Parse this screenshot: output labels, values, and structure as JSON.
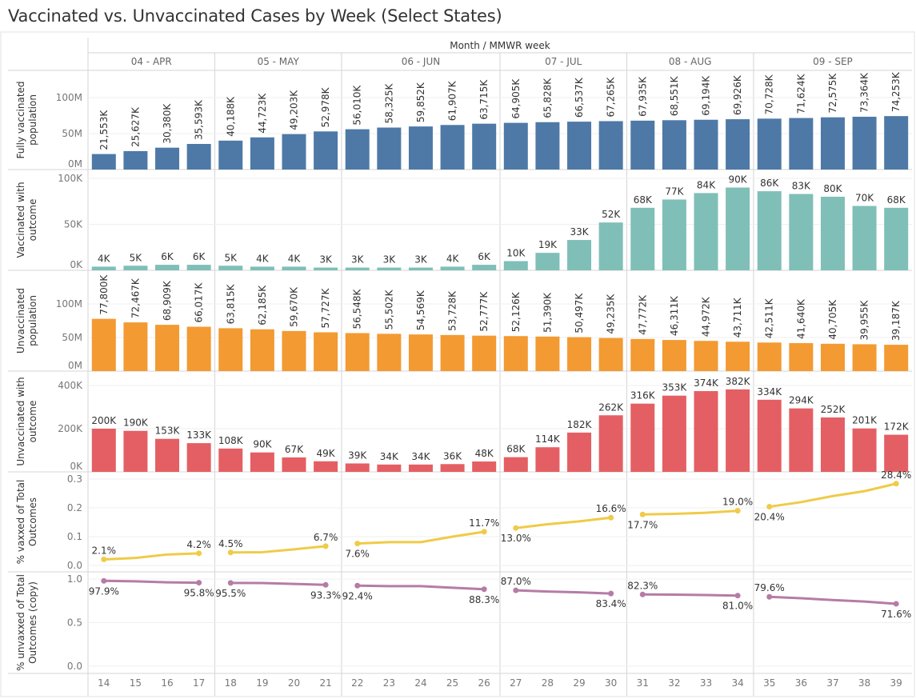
{
  "title": "Vaccinated vs. Unvaccinated Cases by Week (Select States)",
  "chart_data": {
    "type": "bar",
    "title": "Vaccinated vs. Unvaccinated Cases by Week (Select States)",
    "column_header": "Month / MMWR week",
    "months": [
      {
        "label": "04 - APR",
        "weeks": [
          "14",
          "15",
          "16",
          "17"
        ]
      },
      {
        "label": "05 - MAY",
        "weeks": [
          "18",
          "19",
          "20",
          "21"
        ]
      },
      {
        "label": "06 - JUN",
        "weeks": [
          "22",
          "23",
          "24",
          "25",
          "26"
        ]
      },
      {
        "label": "07 - JUL",
        "weeks": [
          "27",
          "28",
          "29",
          "30"
        ]
      },
      {
        "label": "08 - AUG",
        "weeks": [
          "31",
          "32",
          "33",
          "34"
        ]
      },
      {
        "label": "09 - SEP",
        "weeks": [
          "35",
          "36",
          "37",
          "38",
          "39"
        ]
      }
    ],
    "panels": [
      {
        "name": "fully-vaccinated-population",
        "type": "bar",
        "ylabel": [
          "Fully vaccinated",
          "population"
        ],
        "color": "#4e79a7",
        "ylim": [
          0,
          100000000
        ],
        "ticks": [
          {
            "v": 0,
            "t": "0M"
          },
          {
            "v": 50000000,
            "t": "50M"
          },
          {
            "v": 100000000,
            "t": "100M"
          }
        ],
        "label_style": "rotated",
        "values": [
          21553000,
          25627000,
          30380000,
          35593000,
          40188000,
          44723000,
          49203000,
          52978000,
          56010000,
          58325000,
          59852000,
          61907000,
          63715000,
          64905000,
          65828000,
          66537000,
          67265000,
          67935000,
          68551000,
          69194000,
          69926000,
          70728000,
          71624000,
          72575000,
          73364000,
          74253000
        ],
        "labels": [
          "21,553K",
          "25,627K",
          "30,380K",
          "35,593K",
          "40,188K",
          "44,723K",
          "49,203K",
          "52,978K",
          "56,010K",
          "58,325K",
          "59,852K",
          "61,907K",
          "63,715K",
          "64,905K",
          "65,828K",
          "66,537K",
          "67,265K",
          "67,935K",
          "68,551K",
          "69,194K",
          "69,926K",
          "70,728K",
          "71,624K",
          "72,575K",
          "73,364K",
          "74,253K"
        ]
      },
      {
        "name": "vaccinated-with-outcome",
        "type": "bar",
        "ylabel": [
          "Vaccinated with",
          "outcome"
        ],
        "color": "#7fbfb8",
        "ylim": [
          0,
          100000
        ],
        "ticks": [
          {
            "v": 0,
            "t": "0K"
          },
          {
            "v": 50000,
            "t": "50K"
          },
          {
            "v": 100000,
            "t": "100K"
          }
        ],
        "label_style": "flat",
        "values": [
          4000,
          5000,
          6000,
          6000,
          5000,
          4000,
          4000,
          3000,
          3000,
          3000,
          3000,
          4000,
          6000,
          10000,
          19000,
          33000,
          52000,
          68000,
          77000,
          84000,
          90000,
          86000,
          83000,
          80000,
          70000,
          68000
        ],
        "labels": [
          "4K",
          "5K",
          "6K",
          "6K",
          "5K",
          "4K",
          "4K",
          "3K",
          "3K",
          "3K",
          "3K",
          "4K",
          "6K",
          "10K",
          "19K",
          "33K",
          "52K",
          "68K",
          "77K",
          "84K",
          "90K",
          "86K",
          "83K",
          "80K",
          "70K",
          "68K"
        ]
      },
      {
        "name": "unvaccinated-population",
        "type": "bar",
        "ylabel": [
          "Unvaccinated",
          "population"
        ],
        "color": "#f39a32",
        "ylim": [
          0,
          100000000
        ],
        "ticks": [
          {
            "v": 0,
            "t": "0M"
          },
          {
            "v": 50000000,
            "t": "50M"
          },
          {
            "v": 100000000,
            "t": "100M"
          }
        ],
        "label_style": "rotated",
        "values": [
          77800000,
          72467000,
          68909000,
          66017000,
          63815000,
          62185000,
          59670000,
          57727000,
          56548000,
          55502000,
          54569000,
          53728000,
          52777000,
          52126000,
          51390000,
          50497000,
          49235000,
          47772000,
          46311000,
          44972000,
          43711000,
          42511000,
          41640000,
          40705000,
          39955000,
          39187000
        ],
        "labels": [
          "77,800K",
          "72,467K",
          "68,909K",
          "66,017K",
          "63,815K",
          "62,185K",
          "59,670K",
          "57,727K",
          "56,548K",
          "55,502K",
          "54,569K",
          "53,728K",
          "52,777K",
          "52,126K",
          "51,390K",
          "50,497K",
          "49,235K",
          "47,772K",
          "46,311K",
          "44,972K",
          "43,711K",
          "42,511K",
          "41,640K",
          "40,705K",
          "39,955K",
          "39,187K"
        ]
      },
      {
        "name": "unvaccinated-with-outcome",
        "type": "bar",
        "ylabel": [
          "Unvaccinated with",
          "outcome"
        ],
        "color": "#e45f63",
        "ylim": [
          0,
          400000
        ],
        "ticks": [
          {
            "v": 0,
            "t": "0K"
          },
          {
            "v": 200000,
            "t": "200K"
          },
          {
            "v": 400000,
            "t": "400K"
          }
        ],
        "label_style": "flat",
        "values": [
          200000,
          190000,
          153000,
          133000,
          108000,
          90000,
          67000,
          49000,
          39000,
          34000,
          34000,
          36000,
          48000,
          68000,
          114000,
          182000,
          262000,
          316000,
          353000,
          374000,
          382000,
          334000,
          294000,
          252000,
          201000,
          172000
        ],
        "labels": [
          "200K",
          "190K",
          "153K",
          "133K",
          "108K",
          "90K",
          "67K",
          "49K",
          "39K",
          "34K",
          "34K",
          "36K",
          "48K",
          "68K",
          "114K",
          "182K",
          "262K",
          "316K",
          "353K",
          "374K",
          "382K",
          "334K",
          "294K",
          "252K",
          "201K",
          "172K"
        ]
      },
      {
        "name": "pct-vaxxed-of-total-outcomes",
        "type": "line",
        "ylabel": [
          "% vaxxed of Total",
          "Outcomes"
        ],
        "color": "#efcb48",
        "ylim": [
          0,
          0.3
        ],
        "ticks": [
          {
            "v": 0,
            "t": "0.0"
          },
          {
            "v": 0.1,
            "t": "0.1"
          },
          {
            "v": 0.2,
            "t": "0.2"
          },
          {
            "v": 0.3,
            "t": "0.3"
          }
        ],
        "values": [
          0.021,
          0.026,
          0.038,
          0.042,
          0.045,
          0.046,
          0.056,
          0.067,
          0.076,
          0.081,
          0.081,
          0.1,
          0.117,
          0.13,
          0.143,
          0.153,
          0.166,
          0.177,
          0.179,
          0.183,
          0.19,
          0.204,
          0.22,
          0.241,
          0.258,
          0.284
        ],
        "labels": [
          "2.1%",
          null,
          null,
          "4.2%",
          "4.5%",
          null,
          null,
          "6.7%",
          "7.6%",
          null,
          null,
          null,
          "11.7%",
          "13.0%",
          null,
          null,
          "16.6%",
          "17.7%",
          null,
          null,
          "19.0%",
          "20.4%",
          null,
          null,
          null,
          "28.4%"
        ]
      },
      {
        "name": "pct-unvaxxed-of-total-outcomes",
        "type": "line",
        "ylabel": [
          "% unvaxxed of Total",
          "Outcomes (copy)"
        ],
        "color": "#b57ca6",
        "ylim": [
          0,
          1.0
        ],
        "ticks": [
          {
            "v": 0,
            "t": "0.0"
          },
          {
            "v": 0.5,
            "t": "0.5"
          },
          {
            "v": 1.0,
            "t": "1.0"
          }
        ],
        "values": [
          0.979,
          0.974,
          0.962,
          0.958,
          0.955,
          0.954,
          0.944,
          0.933,
          0.924,
          0.919,
          0.919,
          0.9,
          0.883,
          0.87,
          0.857,
          0.847,
          0.834,
          0.823,
          0.821,
          0.817,
          0.81,
          0.796,
          0.78,
          0.759,
          0.742,
          0.716
        ],
        "labels": [
          "97.9%",
          null,
          null,
          "95.8%",
          "95.5%",
          null,
          null,
          "93.3%",
          "92.4%",
          null,
          null,
          null,
          "88.3%",
          "87.0%",
          null,
          null,
          "83.4%",
          "82.3%",
          null,
          null,
          "81.0%",
          "79.6%",
          null,
          null,
          null,
          "71.6%"
        ]
      }
    ]
  }
}
